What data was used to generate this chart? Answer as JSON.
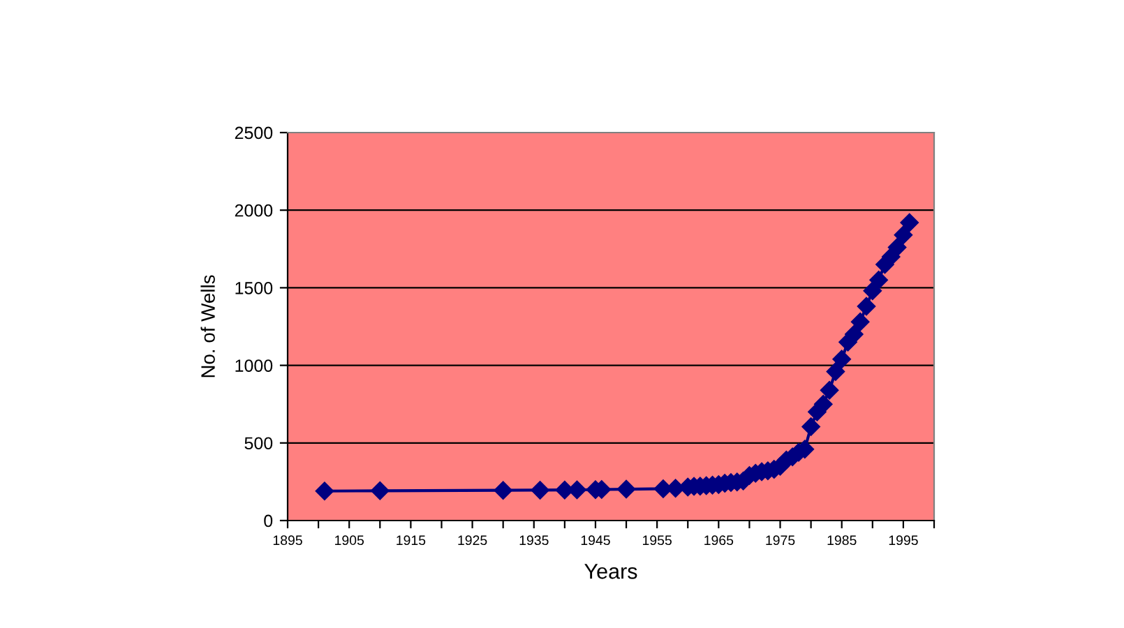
{
  "chart_data": {
    "type": "line",
    "xlabel": "Years",
    "ylabel": "No. of Wells",
    "series": [
      {
        "color": "#000080",
        "x": [
          1901,
          1910,
          1930,
          1936,
          1940,
          1942,
          1945,
          1946,
          1950,
          1956,
          1958,
          1960,
          1961,
          1962,
          1963,
          1964,
          1965,
          1966,
          1967,
          1968,
          1969,
          1970,
          1971,
          1972,
          1973,
          1974,
          1975,
          1976,
          1977,
          1978,
          1979,
          1980,
          1981,
          1982,
          1983,
          1984,
          1985,
          1986,
          1987,
          1988,
          1989,
          1990,
          1991,
          1992,
          1993,
          1994,
          1995,
          1996
        ],
        "values": [
          190,
          192,
          195,
          196,
          197,
          198,
          199,
          200,
          202,
          205,
          208,
          216,
          220,
          222,
          225,
          228,
          232,
          240,
          245,
          248,
          255,
          290,
          305,
          315,
          320,
          330,
          350,
          390,
          410,
          440,
          460,
          605,
          700,
          750,
          840,
          960,
          1040,
          1150,
          1200,
          1280,
          1380,
          1480,
          1550,
          1650,
          1700,
          1760,
          1840,
          1920
        ]
      }
    ],
    "marker": "diamond",
    "line_style": "solid",
    "xlim": [
      1895,
      2000
    ],
    "xticks": [
      1895,
      {
        "value": 1900,
        "label": null
      },
      1905,
      {
        "value": 1910,
        "label": null
      },
      1915,
      {
        "value": 1920,
        "label": null
      },
      1925,
      {
        "value": 1930,
        "label": null
      },
      1935,
      {
        "value": 1940,
        "label": null
      },
      1945,
      {
        "value": 1950,
        "label": null
      },
      1955,
      {
        "value": 1960,
        "label": null
      },
      1965,
      {
        "value": 1970,
        "label": null
      },
      1975,
      {
        "value": 1980,
        "label": null
      },
      1985,
      {
        "value": 1990,
        "label": null
      },
      1995,
      {
        "value": 2000,
        "label": null
      }
    ],
    "ylim": [
      0,
      2500
    ],
    "yticks": [
      0,
      500,
      1000,
      1500,
      2000,
      2500
    ],
    "grid": "y",
    "legend": false
  }
}
